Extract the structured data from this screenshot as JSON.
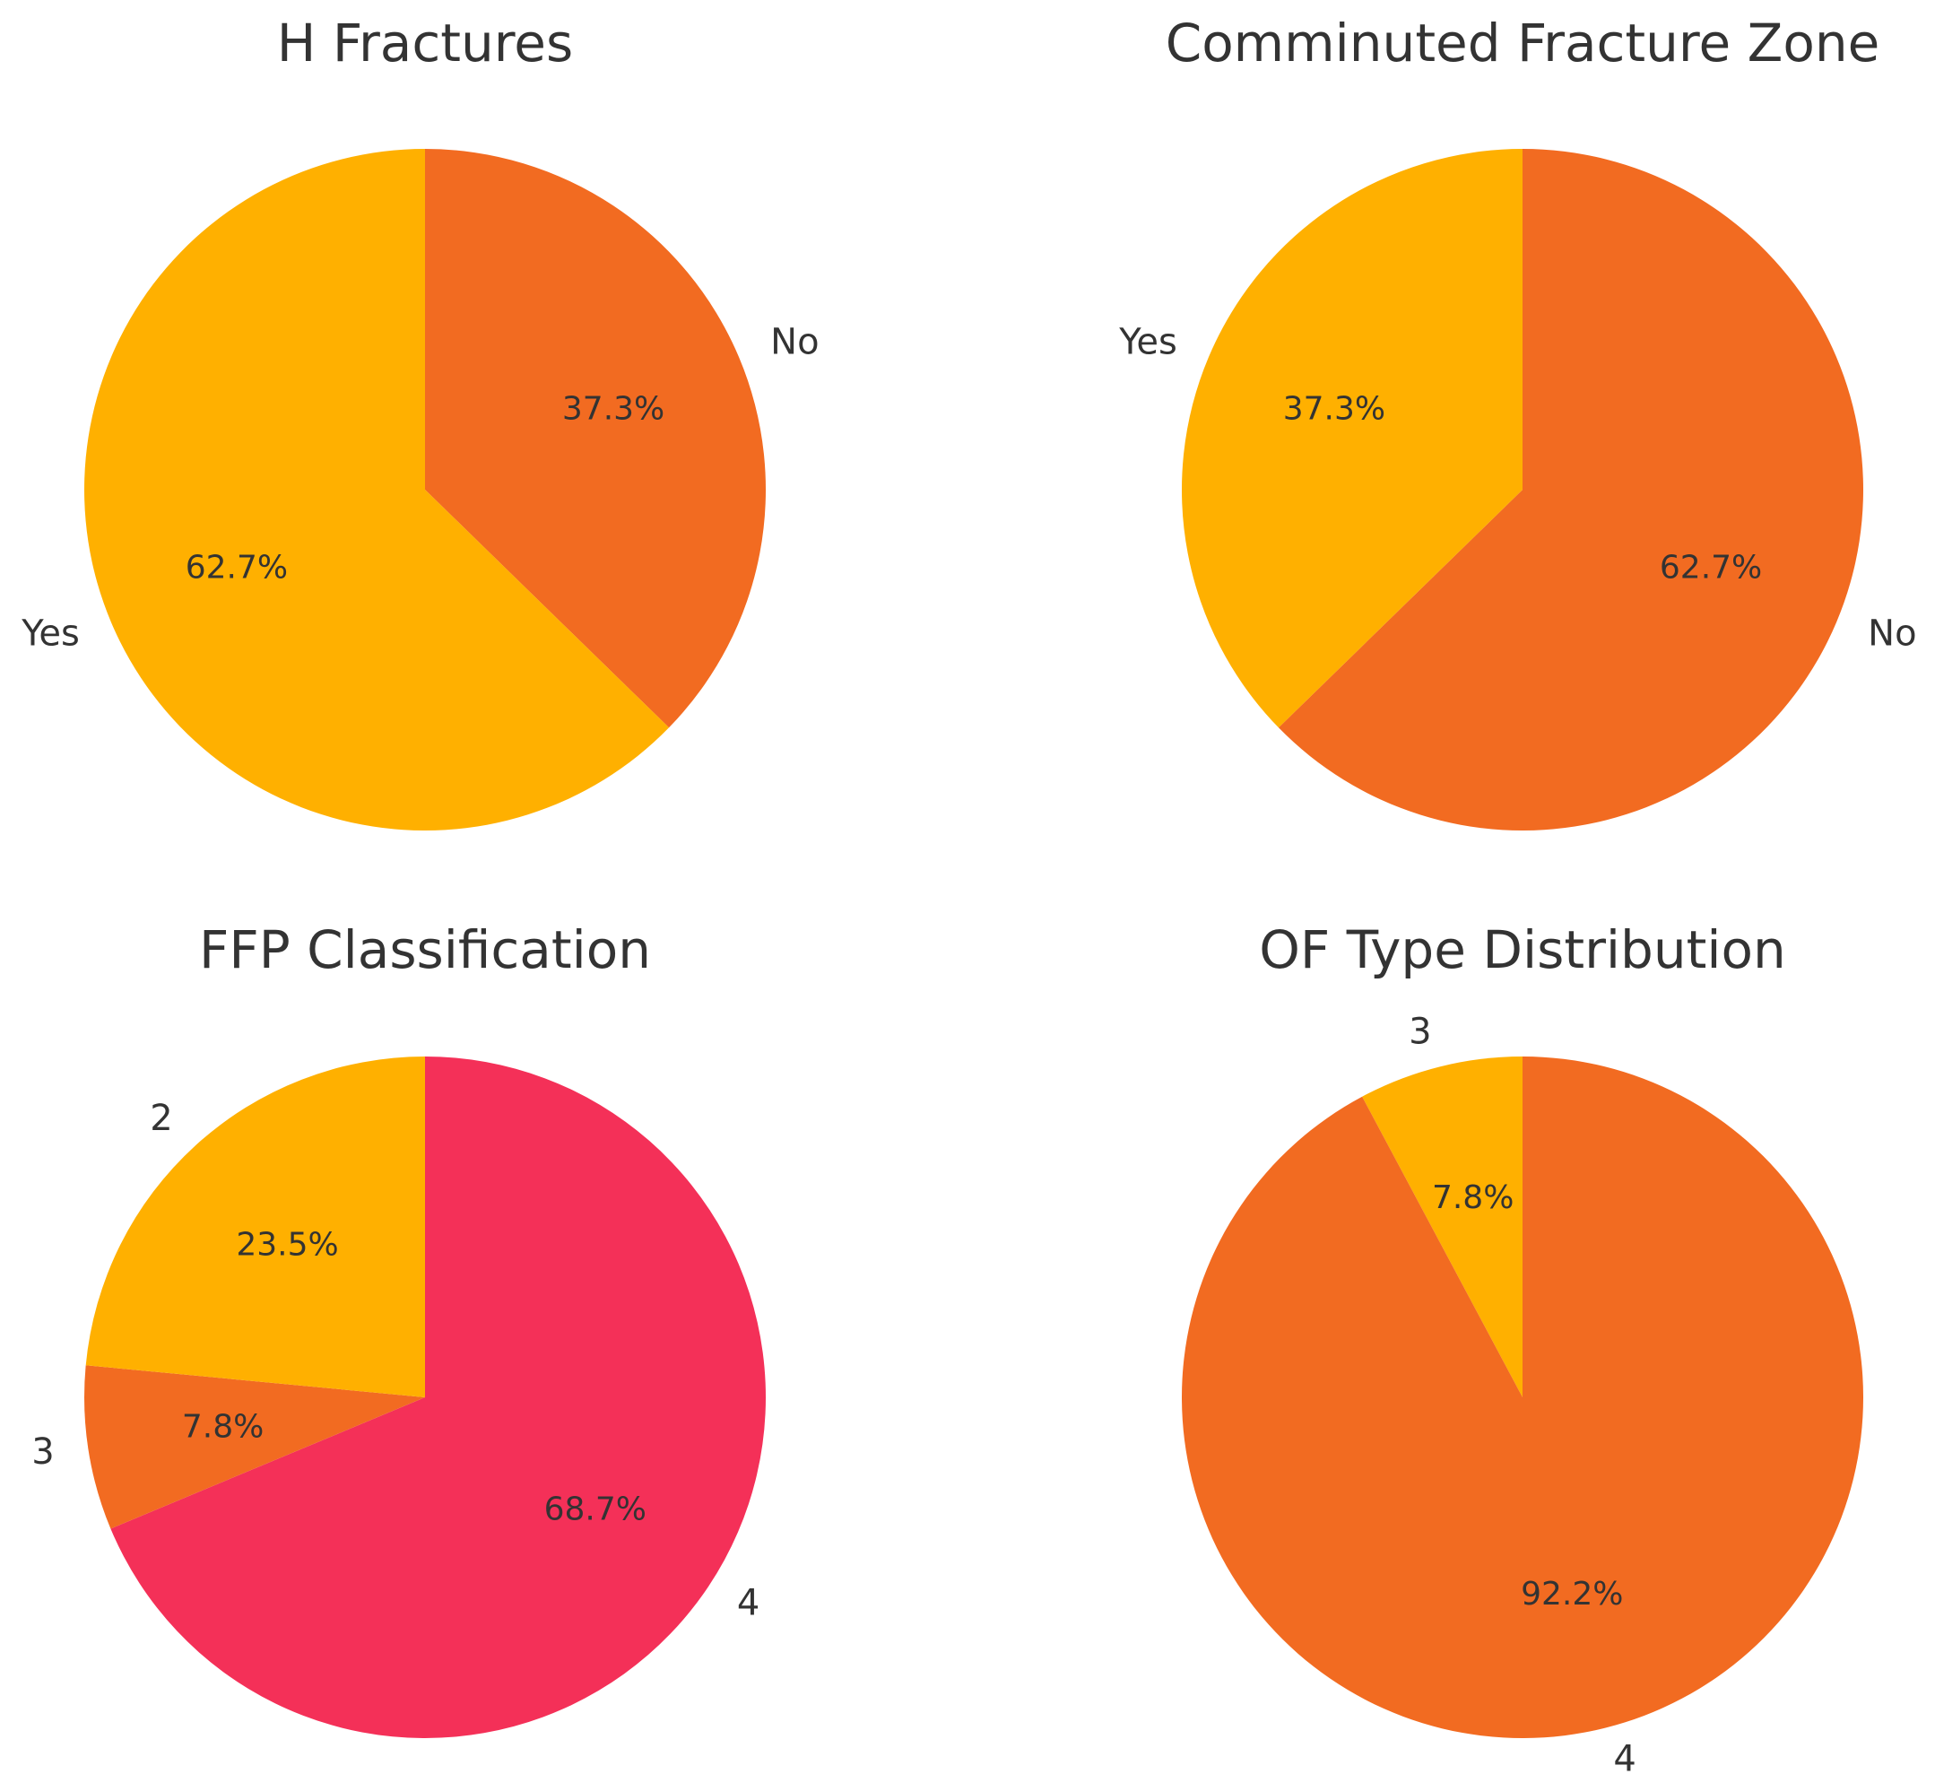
{
  "chart_data": [
    {
      "type": "pie",
      "title": "H Fractures",
      "slices": [
        {
          "label": "No",
          "value": 37.3,
          "pct_label": "37.3%",
          "color": "#f26b21"
        },
        {
          "label": "Yes",
          "value": 62.7,
          "pct_label": "62.7%",
          "color": "#ffb000"
        }
      ],
      "start": "top",
      "direction": "clockwise"
    },
    {
      "type": "pie",
      "title": "Comminuted Fracture Zone",
      "slices": [
        {
          "label": "No",
          "value": 62.7,
          "pct_label": "62.7%",
          "color": "#f26b21"
        },
        {
          "label": "Yes",
          "value": 37.3,
          "pct_label": "37.3%",
          "color": "#ffb000"
        }
      ],
      "start": "top",
      "direction": "clockwise"
    },
    {
      "type": "pie",
      "title": "FFP Classification",
      "slices": [
        {
          "label": "4",
          "value": 68.7,
          "pct_label": "68.7%",
          "color": "#f43058"
        },
        {
          "label": "3",
          "value": 7.8,
          "pct_label": "7.8%",
          "color": "#f26b21"
        },
        {
          "label": "2",
          "value": 23.5,
          "pct_label": "23.5%",
          "color": "#ffb000"
        }
      ],
      "start": "top",
      "direction": "clockwise"
    },
    {
      "type": "pie",
      "title": "OF Type Distribution",
      "slices": [
        {
          "label": "3",
          "value": 7.8,
          "pct_label": "7.8%",
          "color": "#ffb000"
        },
        {
          "label": "4",
          "value": 92.2,
          "pct_label": "92.2%",
          "color": "#f26b21"
        }
      ],
      "start": "top",
      "direction": "counterclockwise"
    }
  ]
}
